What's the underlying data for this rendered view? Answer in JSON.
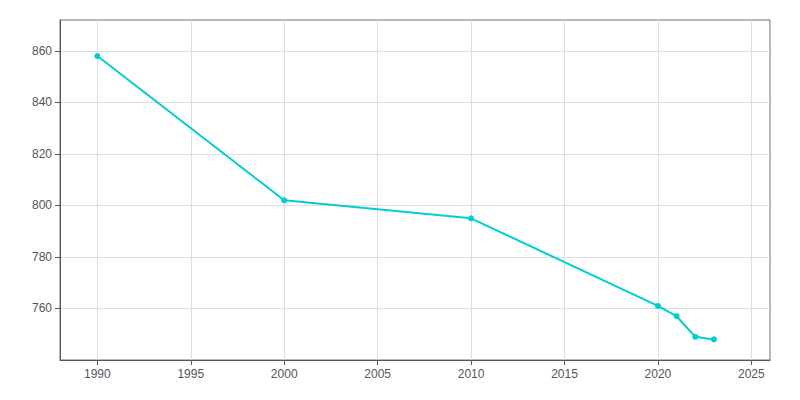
{
  "chart_data": {
    "type": "line",
    "x": [
      1990,
      2000,
      2010,
      2020,
      2021,
      2022,
      2023
    ],
    "values": [
      858,
      802,
      795,
      761,
      757,
      749,
      748
    ],
    "color": "#00CED1",
    "marker": "circle",
    "xlim": [
      1988,
      2026
    ],
    "xticks": [
      1990,
      1995,
      2000,
      2005,
      2010,
      2015,
      2020,
      2025
    ],
    "ylim": [
      740,
      872
    ],
    "yticks": [
      760,
      780,
      800,
      820,
      840,
      860
    ],
    "grid": true
  }
}
